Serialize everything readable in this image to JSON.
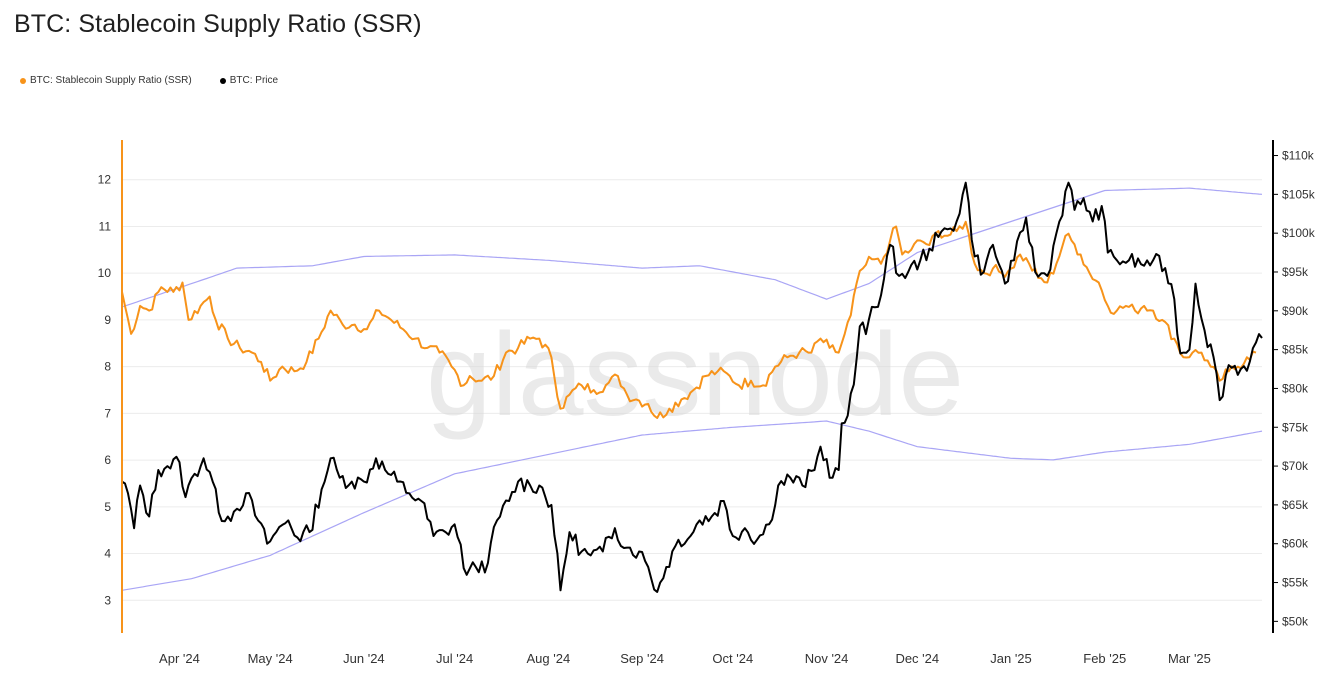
{
  "title": "BTC: Stablecoin Supply Ratio (SSR)",
  "watermark": "glassnode",
  "legend": [
    {
      "label": "BTC: Stablecoin Supply Ratio (SSR)",
      "color": "#f7931a"
    },
    {
      "label": "BTC: Price",
      "color": "#000000"
    }
  ],
  "chart_data": {
    "type": "line",
    "left_axis": {
      "ticks": [
        "3",
        "4",
        "5",
        "6",
        "7",
        "8",
        "9",
        "10",
        "11",
        "12"
      ],
      "range": [
        2.3,
        12.85
      ],
      "color": "#f7931a"
    },
    "right_axis": {
      "ticks": [
        "$50k",
        "$55k",
        "$60k",
        "$65k",
        "$70k",
        "$75k",
        "$80k",
        "$85k",
        "$90k",
        "$95k",
        "$100k",
        "$105k",
        "$110k"
      ],
      "range": [
        48500,
        112000
      ],
      "color": "#000000"
    },
    "x_axis": {
      "labels": [
        "Apr '24",
        "May '24",
        "Jun '24",
        "Jul '24",
        "Aug '24",
        "Sep '24",
        "Oct '24",
        "Nov '24",
        "Dec '24",
        "Jan '25",
        "Feb '25",
        "Mar '25"
      ],
      "range": [
        "2024-03-13",
        "2025-03-25"
      ]
    },
    "grid": true,
    "series": [
      {
        "name": "BTC: Stablecoin Supply Ratio (SSR)",
        "axis": "left",
        "color": "#f7931a",
        "points": [
          [
            "2024-03-13",
            9.6
          ],
          [
            "2024-03-16",
            8.7
          ],
          [
            "2024-03-19",
            9.3
          ],
          [
            "2024-03-22",
            9.2
          ],
          [
            "2024-03-26",
            9.7
          ],
          [
            "2024-03-30",
            9.6
          ],
          [
            "2024-04-02",
            9.8
          ],
          [
            "2024-04-04",
            9.0
          ],
          [
            "2024-04-08",
            9.3
          ],
          [
            "2024-04-11",
            9.5
          ],
          [
            "2024-04-13",
            9.0
          ],
          [
            "2024-04-17",
            8.6
          ],
          [
            "2024-04-21",
            8.4
          ],
          [
            "2024-04-25",
            8.3
          ],
          [
            "2024-04-28",
            8.1
          ],
          [
            "2024-05-01",
            7.7
          ],
          [
            "2024-05-05",
            8.0
          ],
          [
            "2024-05-09",
            7.9
          ],
          [
            "2024-05-13",
            8.1
          ],
          [
            "2024-05-17",
            8.6
          ],
          [
            "2024-05-21",
            9.2
          ],
          [
            "2024-05-25",
            8.9
          ],
          [
            "2024-05-29",
            8.9
          ],
          [
            "2024-06-02",
            8.8
          ],
          [
            "2024-06-06",
            9.2
          ],
          [
            "2024-06-10",
            9.0
          ],
          [
            "2024-06-14",
            8.8
          ],
          [
            "2024-06-18",
            8.6
          ],
          [
            "2024-06-22",
            8.4
          ],
          [
            "2024-06-26",
            8.3
          ],
          [
            "2024-06-30",
            8.0
          ],
          [
            "2024-07-04",
            7.6
          ],
          [
            "2024-07-06",
            7.8
          ],
          [
            "2024-07-10",
            7.7
          ],
          [
            "2024-07-14",
            7.8
          ],
          [
            "2024-07-18",
            8.3
          ],
          [
            "2024-07-22",
            8.4
          ],
          [
            "2024-07-26",
            8.6
          ],
          [
            "2024-07-29",
            8.6
          ],
          [
            "2024-08-02",
            8.2
          ],
          [
            "2024-08-05",
            7.1
          ],
          [
            "2024-08-08",
            7.4
          ],
          [
            "2024-08-12",
            7.6
          ],
          [
            "2024-08-16",
            7.5
          ],
          [
            "2024-08-20",
            7.6
          ],
          [
            "2024-08-24",
            7.8
          ],
          [
            "2024-08-27",
            7.4
          ],
          [
            "2024-08-30",
            7.3
          ],
          [
            "2024-09-03",
            7.2
          ],
          [
            "2024-09-06",
            6.9
          ],
          [
            "2024-09-10",
            7.1
          ],
          [
            "2024-09-14",
            7.3
          ],
          [
            "2024-09-18",
            7.5
          ],
          [
            "2024-09-22",
            7.8
          ],
          [
            "2024-09-26",
            7.9
          ],
          [
            "2024-09-30",
            7.8
          ],
          [
            "2024-10-03",
            7.6
          ],
          [
            "2024-10-07",
            7.7
          ],
          [
            "2024-10-11",
            7.6
          ],
          [
            "2024-10-15",
            8.0
          ],
          [
            "2024-10-19",
            8.2
          ],
          [
            "2024-10-23",
            8.3
          ],
          [
            "2024-10-27",
            8.3
          ],
          [
            "2024-10-30",
            8.6
          ],
          [
            "2024-11-02",
            8.4
          ],
          [
            "2024-11-05",
            8.3
          ],
          [
            "2024-11-07",
            8.7
          ],
          [
            "2024-11-09",
            9.1
          ],
          [
            "2024-11-11",
            9.8
          ],
          [
            "2024-11-13",
            10.1
          ],
          [
            "2024-11-16",
            10.3
          ],
          [
            "2024-11-19",
            10.2
          ],
          [
            "2024-11-22",
            10.7
          ],
          [
            "2024-11-24",
            11.0
          ],
          [
            "2024-11-26",
            10.4
          ],
          [
            "2024-11-29",
            10.5
          ],
          [
            "2024-12-02",
            10.7
          ],
          [
            "2024-12-05",
            10.6
          ],
          [
            "2024-12-08",
            10.9
          ],
          [
            "2024-12-11",
            10.8
          ],
          [
            "2024-12-14",
            10.9
          ],
          [
            "2024-12-17",
            11.1
          ],
          [
            "2024-12-20",
            10.2
          ],
          [
            "2024-12-23",
            10.0
          ],
          [
            "2024-12-26",
            10.1
          ],
          [
            "2024-12-29",
            10.0
          ],
          [
            "2025-01-01",
            10.1
          ],
          [
            "2025-01-04",
            10.4
          ],
          [
            "2025-01-07",
            10.2
          ],
          [
            "2025-01-10",
            9.9
          ],
          [
            "2025-01-13",
            9.8
          ],
          [
            "2025-01-16",
            10.2
          ],
          [
            "2025-01-19",
            10.8
          ],
          [
            "2025-01-21",
            10.7
          ],
          [
            "2025-01-24",
            10.4
          ],
          [
            "2025-01-27",
            10.0
          ],
          [
            "2025-01-30",
            9.8
          ],
          [
            "2025-02-02",
            9.3
          ],
          [
            "2025-02-05",
            9.2
          ],
          [
            "2025-02-08",
            9.3
          ],
          [
            "2025-02-11",
            9.2
          ],
          [
            "2025-02-14",
            9.3
          ],
          [
            "2025-02-17",
            9.2
          ],
          [
            "2025-02-20",
            9.0
          ],
          [
            "2025-02-24",
            8.6
          ],
          [
            "2025-02-27",
            8.2
          ],
          [
            "2025-03-02",
            8.3
          ],
          [
            "2025-03-05",
            8.3
          ],
          [
            "2025-03-08",
            8.0
          ],
          [
            "2025-03-11",
            7.7
          ],
          [
            "2025-03-14",
            7.9
          ],
          [
            "2025-03-17",
            8.0
          ],
          [
            "2025-03-20",
            8.2
          ],
          [
            "2025-03-23",
            8.3
          ]
        ]
      },
      {
        "name": "BTC: Price",
        "axis": "right",
        "color": "#000000",
        "points": [
          [
            "2024-03-13",
            68000
          ],
          [
            "2024-03-15",
            66500
          ],
          [
            "2024-03-17",
            62000
          ],
          [
            "2024-03-19",
            67500
          ],
          [
            "2024-03-22",
            63500
          ],
          [
            "2024-03-25",
            69500
          ],
          [
            "2024-03-28",
            70000
          ],
          [
            "2024-04-01",
            70500
          ],
          [
            "2024-04-03",
            66000
          ],
          [
            "2024-04-06",
            69000
          ],
          [
            "2024-04-09",
            71000
          ],
          [
            "2024-04-12",
            68000
          ],
          [
            "2024-04-14",
            64000
          ],
          [
            "2024-04-17",
            63500
          ],
          [
            "2024-04-20",
            64500
          ],
          [
            "2024-04-23",
            66500
          ],
          [
            "2024-04-27",
            63000
          ],
          [
            "2024-04-30",
            60000
          ],
          [
            "2024-05-03",
            61500
          ],
          [
            "2024-05-07",
            63000
          ],
          [
            "2024-05-10",
            60800
          ],
          [
            "2024-05-14",
            61500
          ],
          [
            "2024-05-18",
            67000
          ],
          [
            "2024-05-21",
            71000
          ],
          [
            "2024-05-24",
            68500
          ],
          [
            "2024-05-28",
            68000
          ],
          [
            "2024-06-01",
            68000
          ],
          [
            "2024-06-05",
            71000
          ],
          [
            "2024-06-08",
            69500
          ],
          [
            "2024-06-12",
            68000
          ],
          [
            "2024-06-16",
            66500
          ],
          [
            "2024-06-20",
            65500
          ],
          [
            "2024-06-24",
            61000
          ],
          [
            "2024-06-28",
            61500
          ],
          [
            "2024-07-01",
            62500
          ],
          [
            "2024-07-05",
            56000
          ],
          [
            "2024-07-08",
            57000
          ],
          [
            "2024-07-12",
            57500
          ],
          [
            "2024-07-15",
            63000
          ],
          [
            "2024-07-19",
            65500
          ],
          [
            "2024-07-22",
            68000
          ],
          [
            "2024-07-26",
            67500
          ],
          [
            "2024-07-29",
            67500
          ],
          [
            "2024-08-02",
            65000
          ],
          [
            "2024-08-05",
            54000
          ],
          [
            "2024-08-08",
            61500
          ],
          [
            "2024-08-12",
            59000
          ],
          [
            "2024-08-15",
            58500
          ],
          [
            "2024-08-19",
            59000
          ],
          [
            "2024-08-23",
            62000
          ],
          [
            "2024-08-27",
            59500
          ],
          [
            "2024-08-31",
            59000
          ],
          [
            "2024-09-03",
            57000
          ],
          [
            "2024-09-06",
            53800
          ],
          [
            "2024-09-09",
            57000
          ],
          [
            "2024-09-13",
            60500
          ],
          [
            "2024-09-17",
            61000
          ],
          [
            "2024-09-20",
            63000
          ],
          [
            "2024-09-24",
            63500
          ],
          [
            "2024-09-28",
            65500
          ],
          [
            "2024-10-01",
            61000
          ],
          [
            "2024-10-05",
            62000
          ],
          [
            "2024-10-09",
            60500
          ],
          [
            "2024-10-13",
            62500
          ],
          [
            "2024-10-16",
            67500
          ],
          [
            "2024-10-20",
            68500
          ],
          [
            "2024-10-24",
            67500
          ],
          [
            "2024-10-28",
            69500
          ],
          [
            "2024-10-30",
            72500
          ],
          [
            "2024-11-03",
            68500
          ],
          [
            "2024-11-05",
            69500
          ],
          [
            "2024-11-06",
            75500
          ],
          [
            "2024-11-08",
            76500
          ],
          [
            "2024-11-10",
            80500
          ],
          [
            "2024-11-12",
            88000
          ],
          [
            "2024-11-14",
            87000
          ],
          [
            "2024-11-16",
            90500
          ],
          [
            "2024-11-19",
            92000
          ],
          [
            "2024-11-22",
            98500
          ],
          [
            "2024-11-25",
            94500
          ],
          [
            "2024-11-28",
            95000
          ],
          [
            "2024-12-02",
            96500
          ],
          [
            "2024-12-05",
            98000
          ],
          [
            "2024-12-08",
            99500
          ],
          [
            "2024-12-11",
            100500
          ],
          [
            "2024-12-14",
            101500
          ],
          [
            "2024-12-17",
            106500
          ],
          [
            "2024-12-20",
            97000
          ],
          [
            "2024-12-23",
            95000
          ],
          [
            "2024-12-26",
            98500
          ],
          [
            "2024-12-30",
            93500
          ],
          [
            "2025-01-02",
            96500
          ],
          [
            "2025-01-06",
            102000
          ],
          [
            "2025-01-09",
            95000
          ],
          [
            "2025-01-13",
            94500
          ],
          [
            "2025-01-16",
            100000
          ],
          [
            "2025-01-20",
            106500
          ],
          [
            "2025-01-22",
            103000
          ],
          [
            "2025-01-25",
            104500
          ],
          [
            "2025-01-28",
            101500
          ],
          [
            "2025-01-31",
            103500
          ],
          [
            "2025-02-02",
            97500
          ],
          [
            "2025-02-05",
            96500
          ],
          [
            "2025-02-09",
            96500
          ],
          [
            "2025-02-13",
            96000
          ],
          [
            "2025-02-17",
            96500
          ],
          [
            "2025-02-21",
            95500
          ],
          [
            "2025-02-24",
            91500
          ],
          [
            "2025-02-26",
            84500
          ],
          [
            "2025-03-01",
            85000
          ],
          [
            "2025-03-03",
            93500
          ],
          [
            "2025-03-06",
            87500
          ],
          [
            "2025-03-09",
            84000
          ],
          [
            "2025-03-11",
            78500
          ],
          [
            "2025-03-14",
            83000
          ],
          [
            "2025-03-18",
            82500
          ],
          [
            "2025-03-21",
            83500
          ],
          [
            "2025-03-24",
            87000
          ],
          [
            "2025-03-25",
            86500
          ]
        ]
      },
      {
        "name": "",
        "axis": "right",
        "color": "#a9a5f5",
        "points": [
          [
            "2024-03-13",
            54000
          ],
          [
            "2024-04-05",
            55500
          ],
          [
            "2024-05-01",
            58500
          ],
          [
            "2024-06-01",
            64000
          ],
          [
            "2024-07-01",
            69000
          ],
          [
            "2024-08-01",
            71500
          ],
          [
            "2024-09-01",
            74000
          ],
          [
            "2024-10-01",
            75000
          ],
          [
            "2024-11-01",
            75800
          ],
          [
            "2024-11-15",
            74500
          ],
          [
            "2024-12-01",
            72500
          ],
          [
            "2025-01-01",
            71000
          ],
          [
            "2025-01-15",
            70800
          ],
          [
            "2025-02-01",
            71800
          ],
          [
            "2025-03-01",
            72800
          ],
          [
            "2025-03-25",
            74500
          ]
        ]
      },
      {
        "name": "",
        "axis": "right",
        "color": "#a9a5f5",
        "points": [
          [
            "2024-03-13",
            90500
          ],
          [
            "2024-04-05",
            93500
          ],
          [
            "2024-04-20",
            95500
          ],
          [
            "2024-05-15",
            95800
          ],
          [
            "2024-06-01",
            97000
          ],
          [
            "2024-07-01",
            97200
          ],
          [
            "2024-08-01",
            96500
          ],
          [
            "2024-09-01",
            95500
          ],
          [
            "2024-09-20",
            95800
          ],
          [
            "2024-10-15",
            94000
          ],
          [
            "2024-11-01",
            91500
          ],
          [
            "2024-11-15",
            93500
          ],
          [
            "2024-12-01",
            97500
          ],
          [
            "2025-01-01",
            101500
          ],
          [
            "2025-02-01",
            105500
          ],
          [
            "2025-03-01",
            105800
          ],
          [
            "2025-03-25",
            105000
          ]
        ]
      }
    ]
  }
}
